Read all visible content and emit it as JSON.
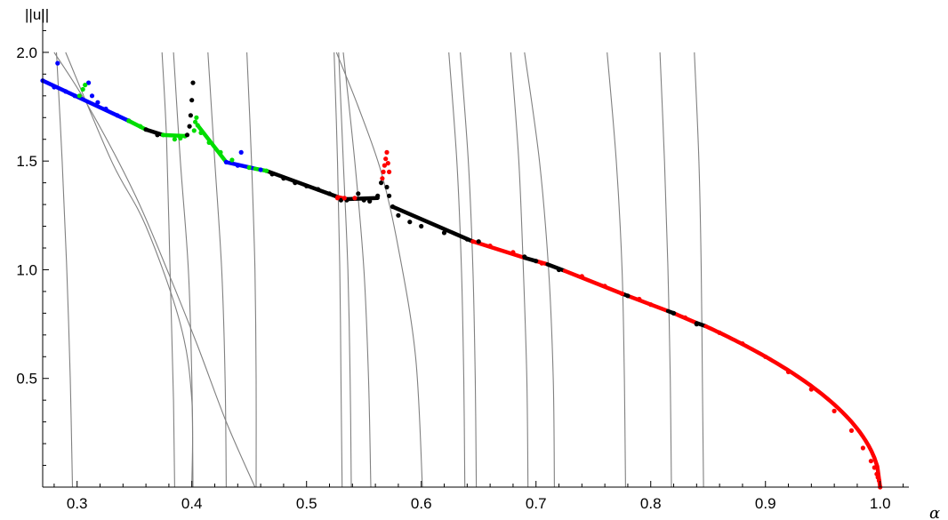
{
  "chart_data": {
    "type": "scatter",
    "title": "",
    "xlabel": "α",
    "ylabel": "||u||",
    "xlim": [
      0.27,
      1.025
    ],
    "ylim": [
      0.0,
      2.2
    ],
    "x_ticks": [
      "0.3",
      "0.4",
      "0.5",
      "0.6",
      "0.7",
      "0.8",
      "0.9",
      "1.0"
    ],
    "y_ticks": [
      "0.5",
      "1.0",
      "1.5",
      "2.0"
    ],
    "x_tick_values": [
      0.3,
      0.4,
      0.5,
      0.6,
      0.7,
      0.8,
      0.9,
      1.0
    ],
    "y_tick_values": [
      0.5,
      1.0,
      1.5,
      2.0
    ],
    "x_minor_step": 0.02,
    "y_minor_step": 0.1,
    "grid": false,
    "series": [
      {
        "color": "#0000ff",
        "points": [
          [
            0.27,
            1.87
          ],
          [
            0.28,
            1.84
          ],
          [
            0.29,
            1.82
          ],
          [
            0.298,
            1.8
          ],
          [
            0.283,
            1.95
          ],
          [
            0.31,
            1.86
          ],
          [
            0.313,
            1.8
          ],
          [
            0.318,
            1.77
          ],
          [
            0.325,
            1.74
          ],
          [
            0.335,
            1.71
          ],
          [
            0.345,
            1.685
          ],
          [
            0.43,
            1.495
          ],
          [
            0.44,
            1.48
          ],
          [
            0.45,
            1.47
          ],
          [
            0.46,
            1.46
          ],
          [
            0.443,
            1.54
          ]
        ]
      },
      {
        "color": "#00dd00",
        "points": [
          [
            0.302,
            1.8
          ],
          [
            0.305,
            1.83
          ],
          [
            0.307,
            1.85
          ],
          [
            0.345,
            1.685
          ],
          [
            0.355,
            1.66
          ],
          [
            0.375,
            1.62
          ],
          [
            0.385,
            1.6
          ],
          [
            0.39,
            1.605
          ],
          [
            0.394,
            1.615
          ],
          [
            0.402,
            1.64
          ],
          [
            0.403,
            1.68
          ],
          [
            0.404,
            1.7
          ],
          [
            0.405,
            1.665
          ],
          [
            0.408,
            1.63
          ],
          [
            0.415,
            1.585
          ],
          [
            0.425,
            1.54
          ],
          [
            0.435,
            1.505
          ],
          [
            0.45,
            1.47
          ],
          [
            0.465,
            1.455
          ]
        ]
      },
      {
        "color": "#000000",
        "points": [
          [
            0.36,
            1.645
          ],
          [
            0.37,
            1.62
          ],
          [
            0.396,
            1.62
          ],
          [
            0.398,
            1.66
          ],
          [
            0.399,
            1.71
          ],
          [
            0.4,
            1.78
          ],
          [
            0.401,
            1.86
          ],
          [
            0.47,
            1.44
          ],
          [
            0.48,
            1.42
          ],
          [
            0.49,
            1.4
          ],
          [
            0.5,
            1.385
          ],
          [
            0.51,
            1.37
          ],
          [
            0.52,
            1.35
          ],
          [
            0.53,
            1.32
          ],
          [
            0.535,
            1.32
          ],
          [
            0.545,
            1.35
          ],
          [
            0.55,
            1.32
          ],
          [
            0.555,
            1.315
          ],
          [
            0.562,
            1.34
          ],
          [
            0.565,
            1.4
          ],
          [
            0.57,
            1.38
          ],
          [
            0.572,
            1.34
          ],
          [
            0.575,
            1.29
          ],
          [
            0.58,
            1.25
          ],
          [
            0.59,
            1.22
          ],
          [
            0.6,
            1.2
          ],
          [
            0.62,
            1.17
          ],
          [
            0.64,
            1.14
          ],
          [
            0.65,
            1.13
          ],
          [
            0.69,
            1.06
          ],
          [
            0.7,
            1.04
          ],
          [
            0.72,
            1.0
          ],
          [
            0.78,
            0.88
          ],
          [
            0.82,
            0.8
          ],
          [
            0.84,
            0.75
          ]
        ]
      },
      {
        "color": "#ff0000",
        "points": [
          [
            0.527,
            1.33
          ],
          [
            0.533,
            1.33
          ],
          [
            0.542,
            1.33
          ],
          [
            0.566,
            1.42
          ],
          [
            0.567,
            1.45
          ],
          [
            0.568,
            1.48
          ],
          [
            0.569,
            1.51
          ],
          [
            0.57,
            1.54
          ],
          [
            0.571,
            1.49
          ],
          [
            0.572,
            1.45
          ],
          [
            0.645,
            1.13
          ],
          [
            0.66,
            1.11
          ],
          [
            0.68,
            1.08
          ],
          [
            0.705,
            1.03
          ],
          [
            0.74,
            0.97
          ],
          [
            0.76,
            0.925
          ],
          [
            0.775,
            0.89
          ],
          [
            0.79,
            0.865
          ],
          [
            0.8,
            0.84
          ],
          [
            0.83,
            0.78
          ],
          [
            0.86,
            0.71
          ],
          [
            0.88,
            0.66
          ],
          [
            0.9,
            0.6
          ],
          [
            0.92,
            0.53
          ],
          [
            0.94,
            0.45
          ],
          [
            0.96,
            0.35
          ],
          [
            0.975,
            0.26
          ],
          [
            0.985,
            0.18
          ],
          [
            0.992,
            0.12
          ],
          [
            0.995,
            0.09
          ],
          [
            0.997,
            0.06
          ],
          [
            0.998,
            0.045
          ],
          [
            0.999,
            0.03
          ],
          [
            1.0,
            0.0
          ]
        ]
      }
    ],
    "continuous_branches": [
      {
        "color": "#0000ff",
        "x": [
          0.27,
          0.345
        ],
        "y": [
          1.87,
          1.685
        ]
      },
      {
        "color": "#00dd00",
        "x": [
          0.345,
          0.36
        ],
        "y": [
          1.685,
          1.645
        ]
      },
      {
        "color": "#000000",
        "x": [
          0.36,
          0.375
        ],
        "y": [
          1.645,
          1.62
        ]
      },
      {
        "color": "#00dd00",
        "x": [
          0.375,
          0.394
        ],
        "y": [
          1.62,
          1.615
        ]
      },
      {
        "color": "#00dd00",
        "x": [
          0.405,
          0.43
        ],
        "y": [
          1.665,
          1.495
        ]
      },
      {
        "color": "#0000ff",
        "x": [
          0.43,
          0.455
        ],
        "y": [
          1.495,
          1.465
        ]
      },
      {
        "color": "#00dd00",
        "x": [
          0.455,
          0.465
        ],
        "y": [
          1.465,
          1.455
        ]
      },
      {
        "color": "#000000",
        "x": [
          0.465,
          0.527
        ],
        "y": [
          1.455,
          1.335
        ]
      },
      {
        "color": "#ff0000",
        "x": [
          0.527,
          0.535
        ],
        "y": [
          1.335,
          1.325
        ]
      },
      {
        "color": "#000000",
        "x": [
          0.535,
          0.562
        ],
        "y": [
          1.325,
          1.33
        ]
      },
      {
        "color": "#000000",
        "x": [
          0.575,
          0.645
        ],
        "y": [
          1.29,
          1.13
        ]
      },
      {
        "color": "#ff0000",
        "x": [
          0.645,
          0.69
        ],
        "y": [
          1.13,
          1.055
        ]
      },
      {
        "color": "#000000",
        "x": [
          0.69,
          0.7
        ],
        "y": [
          1.055,
          1.04
        ]
      },
      {
        "color": "#ff0000",
        "x": [
          0.7,
          0.71
        ],
        "y": [
          1.04,
          1.025
        ]
      },
      {
        "color": "#000000",
        "x": [
          0.71,
          0.725
        ],
        "y": [
          1.025,
          0.995
        ]
      },
      {
        "color": "#ff0000",
        "x": [
          0.725,
          0.775
        ],
        "y": [
          0.995,
          0.89
        ]
      },
      {
        "color": "#000000",
        "x": [
          0.775,
          0.78
        ],
        "y": [
          0.89,
          0.88
        ]
      },
      {
        "color": "#ff0000",
        "x": [
          0.78,
          0.815
        ],
        "y": [
          0.88,
          0.81
        ]
      },
      {
        "color": "#000000",
        "x": [
          0.815,
          0.82
        ],
        "y": [
          0.81,
          0.8
        ]
      },
      {
        "color": "#ff0000",
        "x": [
          0.82,
          0.84
        ],
        "y": [
          0.8,
          0.755
        ]
      },
      {
        "color": "#000000",
        "x": [
          0.84,
          0.848
        ],
        "y": [
          0.755,
          0.74
        ]
      },
      {
        "color": "#ff0000",
        "x": [
          0.848,
          1.0
        ],
        "y": [
          0.74,
          0.0
        ]
      }
    ],
    "gray_curves": [
      [
        [
          0.282,
          2.0
        ],
        [
          0.287,
          1.5
        ],
        [
          0.291,
          1.0
        ],
        [
          0.294,
          0.5
        ],
        [
          0.296,
          0.0
        ]
      ],
      [
        [
          0.29,
          2.0
        ],
        [
          0.33,
          1.5
        ],
        [
          0.36,
          1.2
        ],
        [
          0.39,
          0.75
        ],
        [
          0.4,
          0.4
        ],
        [
          0.4,
          0.0
        ]
      ],
      [
        [
          0.28,
          2.0
        ],
        [
          0.31,
          1.75
        ],
        [
          0.35,
          1.35
        ],
        [
          0.38,
          0.98
        ],
        [
          0.405,
          0.65
        ],
        [
          0.43,
          0.3
        ],
        [
          0.455,
          0.0
        ]
      ],
      [
        [
          0.374,
          2.0
        ],
        [
          0.378,
          1.6
        ],
        [
          0.381,
          1.0
        ],
        [
          0.384,
          0.4
        ],
        [
          0.385,
          0.0
        ]
      ],
      [
        [
          0.384,
          2.0
        ],
        [
          0.39,
          1.5
        ],
        [
          0.397,
          1.0
        ],
        [
          0.4,
          0.5
        ],
        [
          0.401,
          0.0
        ]
      ],
      [
        [
          0.414,
          2.0
        ],
        [
          0.42,
          1.5
        ],
        [
          0.426,
          1.0
        ],
        [
          0.429,
          0.5
        ],
        [
          0.43,
          0.0
        ]
      ],
      [
        [
          0.448,
          2.0
        ],
        [
          0.452,
          1.5
        ],
        [
          0.455,
          1.0
        ],
        [
          0.456,
          0.5
        ],
        [
          0.456,
          0.0
        ]
      ],
      [
        [
          0.524,
          2.0
        ],
        [
          0.527,
          1.5
        ],
        [
          0.529,
          1.0
        ],
        [
          0.53,
          0.5
        ],
        [
          0.531,
          0.0
        ]
      ],
      [
        [
          0.528,
          2.0
        ],
        [
          0.532,
          1.5
        ],
        [
          0.536,
          1.0
        ],
        [
          0.538,
          0.5
        ],
        [
          0.539,
          0.0
        ]
      ],
      [
        [
          0.532,
          2.0
        ],
        [
          0.542,
          1.5
        ],
        [
          0.55,
          1.0
        ],
        [
          0.554,
          0.5
        ],
        [
          0.556,
          0.0
        ]
      ],
      [
        [
          0.526,
          2.0
        ],
        [
          0.545,
          1.75
        ],
        [
          0.565,
          1.45
        ],
        [
          0.58,
          1.1
        ],
        [
          0.595,
          0.6
        ],
        [
          0.601,
          0.0
        ]
      ],
      [
        [
          0.624,
          2.0
        ],
        [
          0.631,
          1.5
        ],
        [
          0.635,
          1.0
        ],
        [
          0.637,
          0.5
        ],
        [
          0.638,
          0.0
        ]
      ],
      [
        [
          0.634,
          2.0
        ],
        [
          0.641,
          1.5
        ],
        [
          0.645,
          1.0
        ],
        [
          0.647,
          0.5
        ],
        [
          0.648,
          0.0
        ]
      ],
      [
        [
          0.678,
          2.0
        ],
        [
          0.685,
          1.5
        ],
        [
          0.689,
          1.0
        ],
        [
          0.692,
          0.5
        ],
        [
          0.693,
          0.0
        ]
      ],
      [
        [
          0.69,
          2.0
        ],
        [
          0.703,
          1.5
        ],
        [
          0.711,
          1.0
        ],
        [
          0.715,
          0.5
        ],
        [
          0.716,
          0.0
        ]
      ],
      [
        [
          0.762,
          2.0
        ],
        [
          0.77,
          1.5
        ],
        [
          0.775,
          1.0
        ],
        [
          0.777,
          0.5
        ],
        [
          0.778,
          0.0
        ]
      ],
      [
        [
          0.808,
          2.0
        ],
        [
          0.812,
          1.5
        ],
        [
          0.815,
          1.0
        ],
        [
          0.817,
          0.5
        ],
        [
          0.818,
          0.0
        ]
      ],
      [
        [
          0.838,
          2.0
        ],
        [
          0.842,
          1.5
        ],
        [
          0.844,
          1.0
        ],
        [
          0.845,
          0.5
        ],
        [
          0.846,
          0.0
        ]
      ]
    ]
  }
}
